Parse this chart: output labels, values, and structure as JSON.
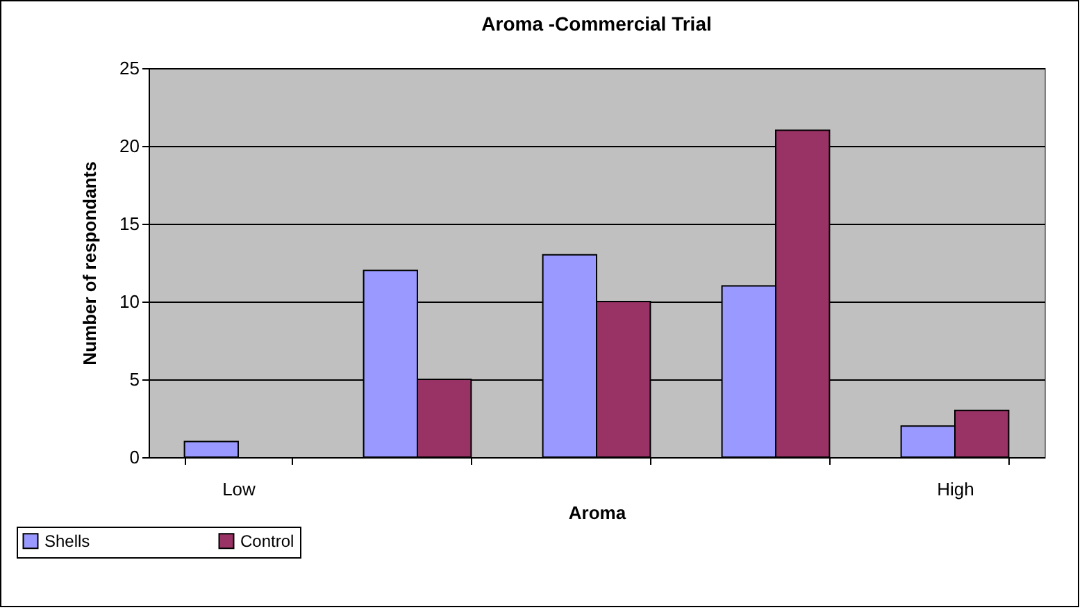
{
  "chart_data": {
    "type": "bar",
    "title": "Aroma -Commercial Trial",
    "xlabel": "Aroma",
    "ylabel": "Number of respondants",
    "categories": [
      "Low",
      null,
      null,
      null,
      "High"
    ],
    "series": [
      {
        "name": "Shells",
        "color": "#9999ff",
        "values": [
          1,
          12,
          13,
          11,
          2
        ]
      },
      {
        "name": "Control",
        "color": "#993366",
        "values": [
          null,
          5,
          10,
          21,
          3
        ]
      }
    ],
    "ylim": [
      0,
      25
    ],
    "yticks": [
      0,
      5,
      10,
      15,
      20,
      25
    ],
    "grid": "y",
    "legend": "bottom left"
  }
}
